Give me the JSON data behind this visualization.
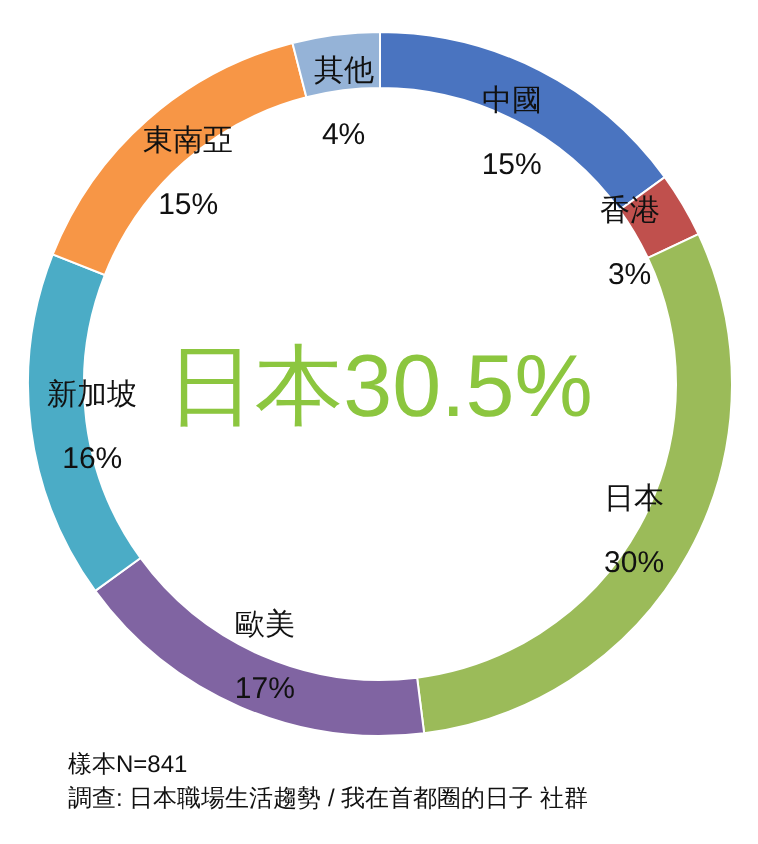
{
  "chart_data": {
    "type": "donut",
    "categories": [
      "中國",
      "香港",
      "日本",
      "歐美",
      "新加坡",
      "東南亞",
      "其他"
    ],
    "values": [
      15,
      3,
      30,
      17,
      16,
      15,
      4
    ],
    "value_labels": [
      "15%",
      "3%",
      "30%",
      "17%",
      "16%",
      "15%",
      "4%"
    ],
    "colors": [
      "#4a74c0",
      "#c0504d",
      "#9bbb59",
      "#8064a2",
      "#4bacc6",
      "#f79646",
      "#95b3d7"
    ],
    "annotations": [
      "日本30.5%",
      "樣本N=841",
      "調查: 日本職場生活趨勢 / 我在首都圈的日子 社群"
    ]
  }
}
